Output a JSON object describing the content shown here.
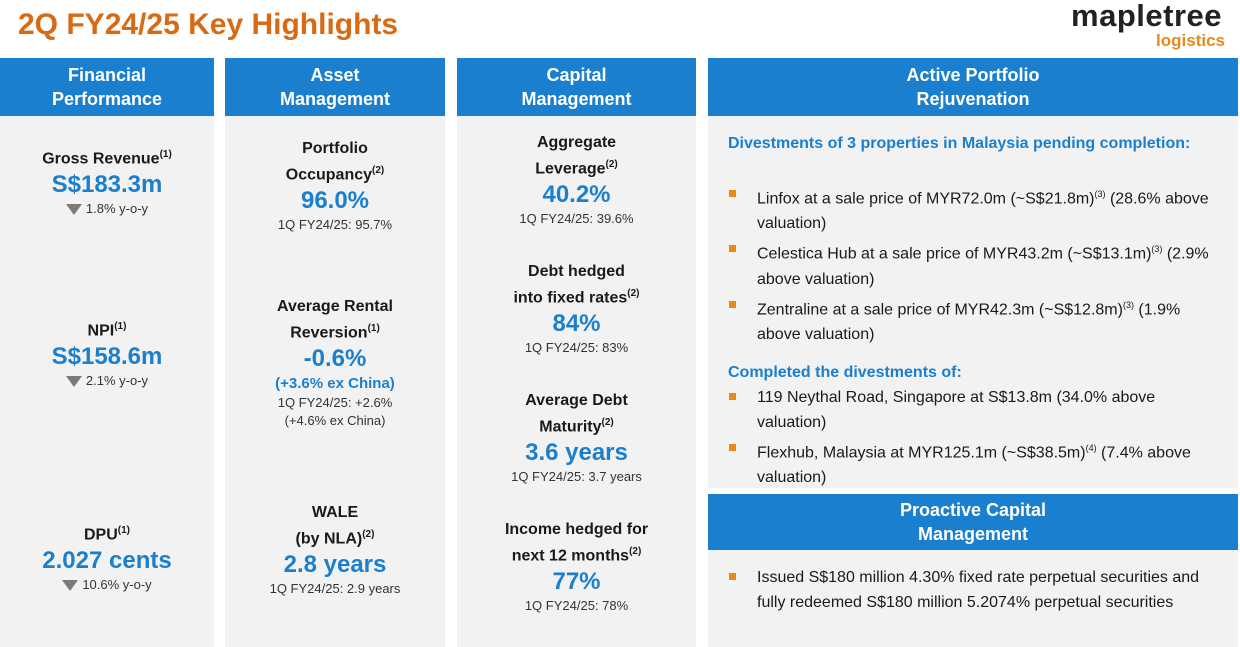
{
  "title": "2Q FY24/25 Key Highlights",
  "logo": {
    "word": "mapletree",
    "sub": "logistics"
  },
  "colors": {
    "accent_blue": "#1a7fcf",
    "title_orange": "#d86a14",
    "bullet_orange": "#e8891c",
    "panel_bg": "#f2f2f2"
  },
  "financial": {
    "header": "Financial\nPerformance",
    "items": [
      {
        "label": "Gross Revenue",
        "sup": "(1)",
        "value": "S$183.3m",
        "change": "1.8% y-o-y",
        "direction": "down"
      },
      {
        "label": "NPI",
        "sup": "(1)",
        "value": "S$158.6m",
        "change": "2.1% y-o-y",
        "direction": "down"
      },
      {
        "label": "DPU",
        "sup": "(1)",
        "value": "2.027 cents",
        "change": "10.6% y-o-y",
        "direction": "down"
      }
    ]
  },
  "asset": {
    "header": "Asset\nManagement",
    "items": [
      {
        "label": "Portfolio\nOccupancy",
        "sup": "(2)",
        "value": "96.0%",
        "sub": "1Q FY24/25: 95.7%"
      },
      {
        "label": "Average Rental\nReversion",
        "sup": "(1)",
        "value": "-0.6%",
        "extra": "(+3.6% ex China)",
        "sub": "1Q FY24/25: +2.6%\n(+4.6% ex China)"
      },
      {
        "label": "WALE\n(by NLA)",
        "sup": "(2)",
        "value": "2.8 years",
        "sub": "1Q FY24/25: 2.9 years"
      }
    ]
  },
  "capital": {
    "header": "Capital\nManagement",
    "items": [
      {
        "label": "Aggregate\nLeverage",
        "sup": "(2)",
        "value": "40.2%",
        "sub": "1Q FY24/25: 39.6%"
      },
      {
        "label": "Debt hedged\ninto fixed rates",
        "sup": "(2)",
        "value": "84%",
        "sub": "1Q FY24/25: 83%"
      },
      {
        "label": "Average Debt\nMaturity",
        "sup": "(2)",
        "value": "3.6 years",
        "sub": "1Q FY24/25: 3.7 years"
      },
      {
        "label": "Income hedged for\nnext 12 months",
        "sup": "(2)",
        "value": "77%",
        "sub": "1Q FY24/25: 78%"
      }
    ]
  },
  "portfolio": {
    "header": "Active Portfolio\nRejuvenation",
    "section1_title": "Divestments of 3 properties in Malaysia pending completion:",
    "section1_items": [
      {
        "a": "Linfox at a sale price of MYR72.0m (~S$21.8m)",
        "sup": "(3)",
        "b": " (28.6% above valuation)"
      },
      {
        "a": "Celestica Hub at a sale price of MYR43.2m (~S$13.1m)",
        "sup": "(3)",
        "b": " (2.9% above valuation)"
      },
      {
        "a": "Zentraline at a sale price of MYR42.3m (~S$12.8m)",
        "sup": "(3)",
        "b": " (1.9% above valuation)"
      }
    ],
    "section2_title": "Completed the divestments of:",
    "section2_items": [
      {
        "a": "119 Neythal Road, Singapore at S$13.8m (34.0% above valuation)"
      },
      {
        "a": "Flexhub, Malaysia at MYR125.1m (~S$38.5m)",
        "sup": "(4)",
        "b": "  (7.4% above valuation)"
      }
    ]
  },
  "proactive": {
    "header": "Proactive Capital\nManagement",
    "items": [
      {
        "a": "Issued S$180 million 4.30% fixed rate perpetual securities and fully redeemed S$180 million 5.2074% perpetual securities"
      }
    ]
  }
}
